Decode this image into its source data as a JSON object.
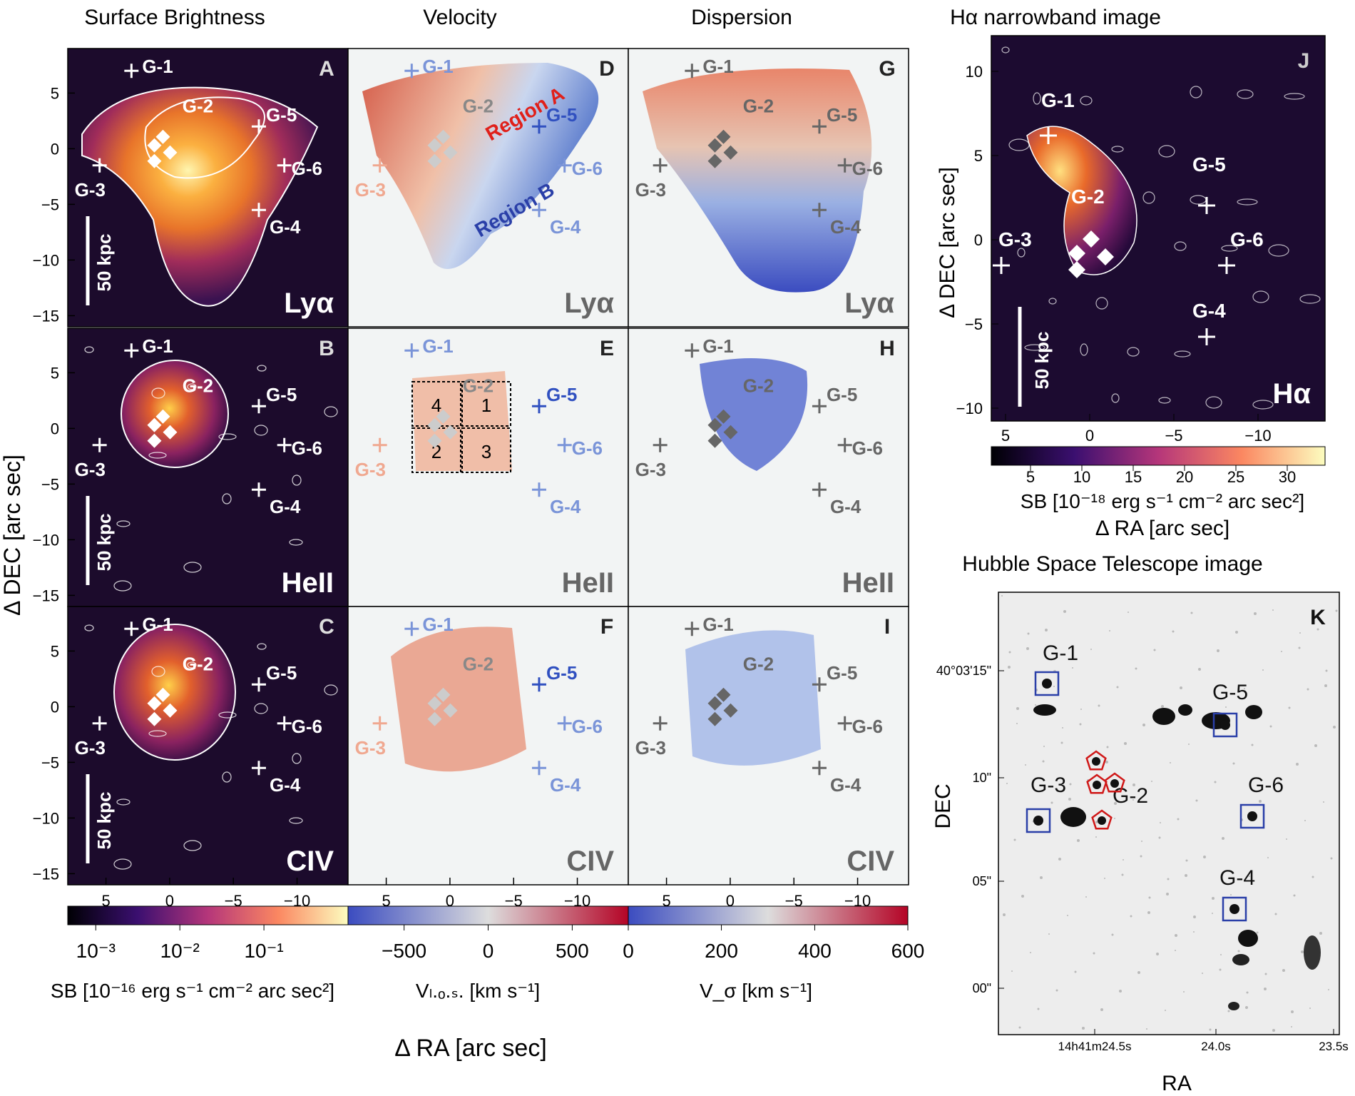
{
  "columns": {
    "sb": "Surface Brightness",
    "vel": "Velocity",
    "disp": "Dispersion"
  },
  "ha_title": "Hα narrowband image",
  "hst_title": "Hubble Space Telescope image",
  "axis": {
    "dec": "Δ DEC [arc sec]",
    "ra": "Δ RA [arc sec]",
    "hst_dec": "DEC",
    "hst_ra": "RA"
  },
  "ticks": {
    "main_y": [
      "5",
      "0",
      "−5",
      "−10",
      "−15"
    ],
    "main_x": [
      "5",
      "0",
      "−5",
      "−10"
    ],
    "ha_y": [
      "10",
      "5",
      "0",
      "−5",
      "−10"
    ],
    "ha_x": [
      "5",
      "0",
      "−5",
      "−10"
    ],
    "hst_y": [
      "40°03'15\"",
      "10\"",
      "05\"",
      "00\""
    ],
    "hst_x": [
      "14h41m24.5s",
      "24.0s",
      "23.5s"
    ]
  },
  "panels": [
    {
      "letter": "A",
      "line": "Lyα"
    },
    {
      "letter": "D",
      "line": "Lyα"
    },
    {
      "letter": "G",
      "line": "Lyα"
    },
    {
      "letter": "B",
      "line": "HeII"
    },
    {
      "letter": "E",
      "line": "HeII"
    },
    {
      "letter": "H",
      "line": "HeII"
    },
    {
      "letter": "C",
      "line": "CIV"
    },
    {
      "letter": "F",
      "line": "CIV"
    },
    {
      "letter": "I",
      "line": "CIV"
    },
    {
      "letter": "J",
      "line": "Hα"
    },
    {
      "letter": "K",
      "line": ""
    }
  ],
  "galaxies": [
    "G-1",
    "G-2",
    "G-3",
    "G-4",
    "G-5",
    "G-6"
  ],
  "scalebar": "50 kpc",
  "regions": {
    "a": "Region A",
    "b": "Region B"
  },
  "boxes": [
    "4",
    "1",
    "2",
    "3"
  ],
  "colorbars": {
    "sb": {
      "ticks": [
        "10⁻³",
        "10⁻²",
        "10⁻¹"
      ],
      "label": "SB [10⁻¹⁶ erg s⁻¹ cm⁻² arc sec²]"
    },
    "vlos": {
      "ticks": [
        "−500",
        "0",
        "500"
      ],
      "label": "Vₗ.ₒ.ₛ. [km s⁻¹]"
    },
    "vsig": {
      "ticks": [
        "0",
        "200",
        "400",
        "600"
      ],
      "label": "V_σ [km s⁻¹]"
    },
    "ha": {
      "ticks": [
        "5",
        "10",
        "15",
        "20",
        "25",
        "30"
      ],
      "label": "SB [10⁻¹⁸ erg s⁻¹ cm⁻² arc sec²]"
    }
  },
  "colors": {
    "hot_dark": "#1a0b2e",
    "hot_mid": "#c0392b",
    "hot_bright": "#ffe680",
    "cool": "#3b4cc0",
    "warm": "#b40426",
    "gray": "#666666"
  }
}
